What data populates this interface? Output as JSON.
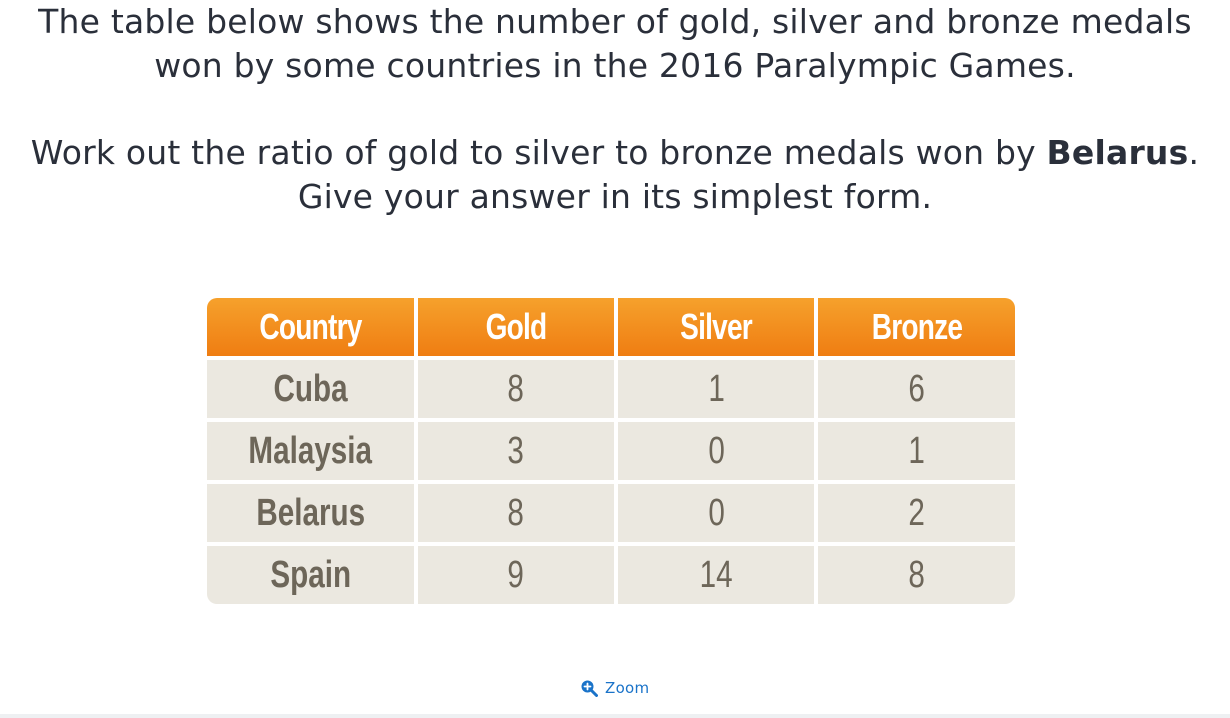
{
  "question": {
    "line1": "The table below shows the number of gold, silver and bronze medals",
    "line2": "won by some countries in the 2016 Paralympic Games.",
    "line3_prefix": "Work out the ratio of gold to silver to bronze medals won by ",
    "line3_bold": "Belarus",
    "line3_suffix": ".",
    "line4": "Give your answer in its simplest form."
  },
  "table": {
    "headers": [
      "Country",
      "Gold",
      "Silver",
      "Bronze"
    ],
    "rows": [
      [
        "Cuba",
        "8",
        "1",
        "6"
      ],
      [
        "Malaysia",
        "3",
        "0",
        "1"
      ],
      [
        "Belarus",
        "8",
        "0",
        "2"
      ],
      [
        "Spain",
        "9",
        "14",
        "8"
      ]
    ]
  },
  "zoom": {
    "label": "Zoom",
    "icon": "zoom-in-icon"
  },
  "colors": {
    "header_orange": "#ef7d12",
    "cell_bg": "#ebe8e0",
    "link_blue": "#1a73c9"
  }
}
